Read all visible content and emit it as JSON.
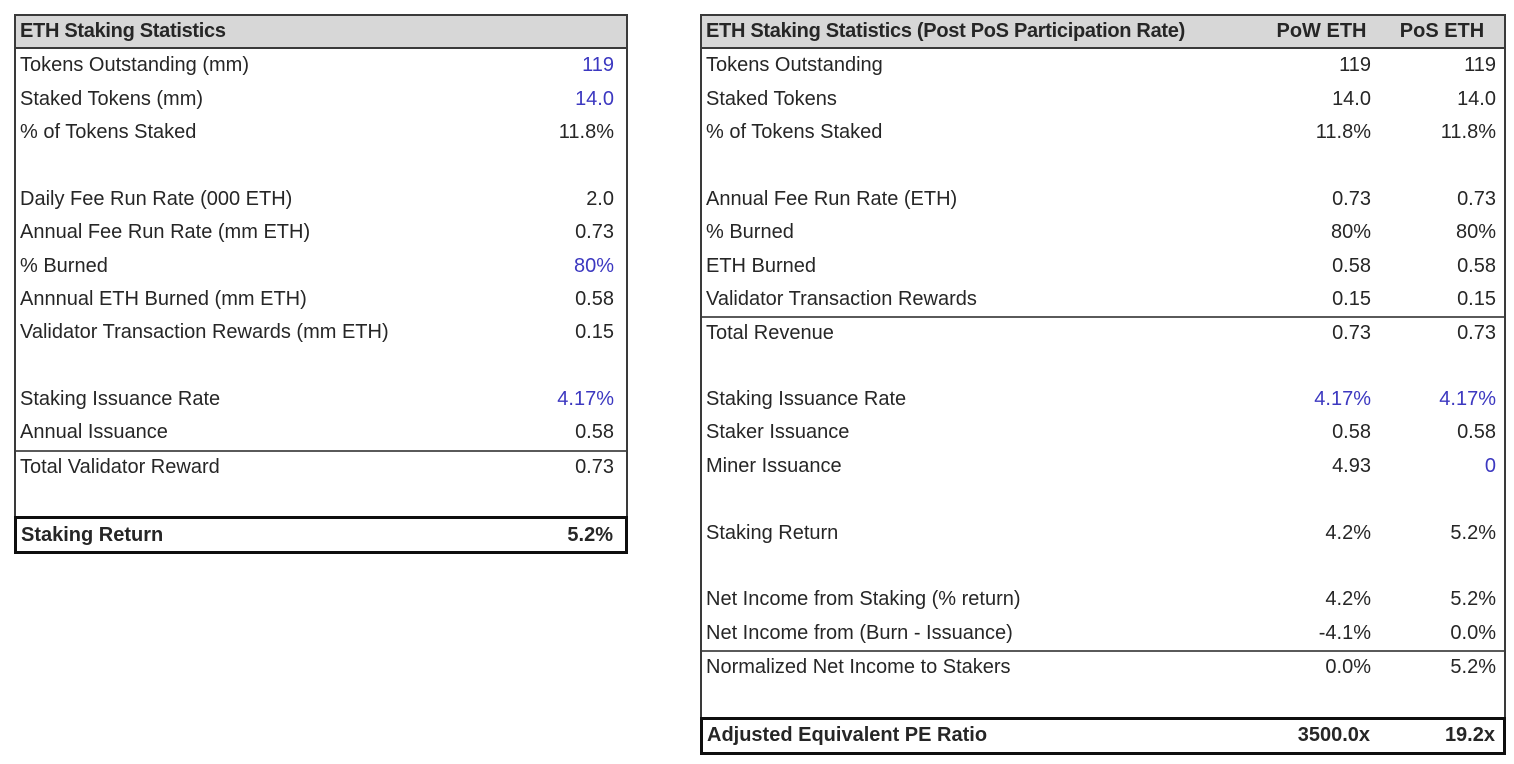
{
  "colors": {
    "accent_blue": "#3c38c0",
    "header_bg": "#d7d7d7",
    "text": "#262626",
    "outer_border": "#3a3a3a"
  },
  "left_table": {
    "title": "ETH Staking Statistics",
    "rows": [
      {
        "label": "Tokens Outstanding (mm)",
        "value": "119",
        "blue": true
      },
      {
        "label": "Staked Tokens (mm)",
        "value": "14.0",
        "blue": true
      },
      {
        "label": "% of Tokens Staked",
        "value": "11.8%"
      },
      {
        "blank": true
      },
      {
        "label": "Daily Fee Run Rate (000 ETH)",
        "value": "2.0"
      },
      {
        "label": "Annual Fee Run Rate (mm ETH)",
        "value": "0.73"
      },
      {
        "label": "% Burned",
        "value": "80%",
        "blue": true
      },
      {
        "label": "Annnual ETH Burned (mm ETH)",
        "value": "0.58"
      },
      {
        "label": "Validator Transaction Rewards (mm ETH)",
        "value": "0.15"
      },
      {
        "blank": true
      },
      {
        "label": "Staking Issuance Rate",
        "value": "4.17%",
        "blue": true
      },
      {
        "label": "Annual Issuance",
        "value": "0.58"
      },
      {
        "label": "Total Validator Reward",
        "value": "0.73",
        "top_border": true
      },
      {
        "blank": true
      },
      {
        "label": "Staking Return",
        "value": "5.2%",
        "bold": true,
        "box": true
      }
    ]
  },
  "right_table": {
    "title": "ETH Staking Statistics (Post PoS Participation Rate)",
    "col1": "PoW ETH",
    "col2": "PoS ETH",
    "rows": [
      {
        "label": "Tokens Outstanding",
        "pow": "119",
        "pos": "119"
      },
      {
        "label": "Staked Tokens",
        "pow": "14.0",
        "pos": "14.0"
      },
      {
        "label": "% of Tokens Staked",
        "pow": "11.8%",
        "pos": "11.8%"
      },
      {
        "blank": true
      },
      {
        "label": "Annual Fee Run Rate (ETH)",
        "pow": "0.73",
        "pos": "0.73"
      },
      {
        "label": "% Burned",
        "pow": "80%",
        "pos": "80%"
      },
      {
        "label": "ETH Burned",
        "pow": "0.58",
        "pos": "0.58"
      },
      {
        "label": "Validator Transaction Rewards",
        "pow": "0.15",
        "pos": "0.15"
      },
      {
        "label": "Total Revenue",
        "pow": "0.73",
        "pos": "0.73",
        "top_border": true
      },
      {
        "blank": true
      },
      {
        "label": "Staking Issuance Rate",
        "pow": "4.17%",
        "pos": "4.17%",
        "pow_blue": true,
        "pos_blue": true
      },
      {
        "label": "Staker Issuance",
        "pow": "0.58",
        "pos": "0.58"
      },
      {
        "label": "Miner Issuance",
        "pow": "4.93",
        "pos": "0",
        "pos_blue": true
      },
      {
        "blank": true
      },
      {
        "label": "Staking Return",
        "pow": "4.2%",
        "pos": "5.2%"
      },
      {
        "blank": true
      },
      {
        "label": "Net Income from Staking (% return)",
        "pow": "4.2%",
        "pos": "5.2%"
      },
      {
        "label": "Net Income from (Burn - Issuance)",
        "pow": "-4.1%",
        "pos": "0.0%"
      },
      {
        "label": "Normalized Net Income to Stakers",
        "pow": "0.0%",
        "pos": "5.2%",
        "top_border": true
      },
      {
        "blank": true
      },
      {
        "label": "Adjusted Equivalent PE Ratio",
        "pow": "3500.0x",
        "pos": "19.2x",
        "bold": true,
        "box": true
      }
    ]
  }
}
